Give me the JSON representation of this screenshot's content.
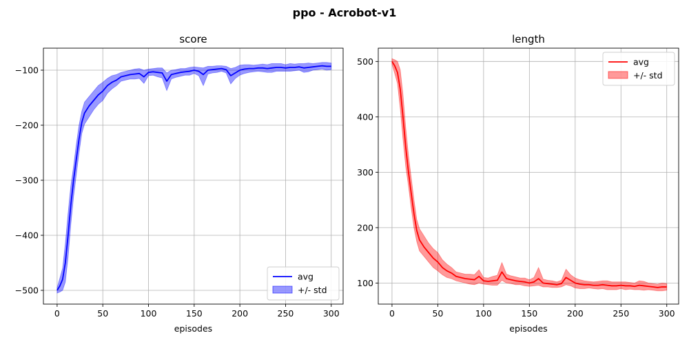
{
  "figure": {
    "suptitle": "ppo - Acrobot-v1"
  },
  "chart_data": [
    {
      "type": "line",
      "title": "score",
      "xlabel": "episodes",
      "ylabel": "",
      "xlim": [
        -15,
        313
      ],
      "ylim": [
        -525,
        -60
      ],
      "xticks": [
        0,
        50,
        100,
        150,
        200,
        250,
        300
      ],
      "yticks": [
        -500,
        -400,
        -300,
        -200,
        -100
      ],
      "ytick_labels": [
        "−500",
        "−400",
        "−300",
        "−200",
        "−100"
      ],
      "grid": true,
      "legend": {
        "placement": "bottom-right",
        "entries": [
          "avg",
          "+/- std"
        ]
      },
      "color": "#0000ff",
      "fill_color": "#0000ff",
      "series": [
        {
          "name": "avg",
          "x": [
            0,
            3,
            6,
            9,
            12,
            15,
            18,
            21,
            24,
            27,
            30,
            35,
            40,
            45,
            50,
            55,
            60,
            65,
            70,
            75,
            80,
            85,
            90,
            95,
            100,
            105,
            110,
            115,
            120,
            125,
            130,
            135,
            140,
            145,
            150,
            155,
            160,
            165,
            170,
            175,
            180,
            185,
            190,
            195,
            200,
            205,
            210,
            215,
            220,
            225,
            230,
            235,
            240,
            245,
            250,
            255,
            260,
            265,
            270,
            275,
            280,
            285,
            290,
            295,
            300
          ],
          "y": [
            -500,
            -492,
            -480,
            -450,
            -400,
            -345,
            -300,
            -262,
            -225,
            -195,
            -178,
            -165,
            -155,
            -145,
            -138,
            -128,
            -122,
            -118,
            -112,
            -110,
            -108,
            -107,
            -106,
            -112,
            -104,
            -103,
            -104,
            -105,
            -120,
            -108,
            -106,
            -104,
            -103,
            -102,
            -100,
            -102,
            -108,
            -100,
            -99,
            -98,
            -97,
            -99,
            -110,
            -105,
            -100,
            -98,
            -97,
            -97,
            -96,
            -96,
            -97,
            -96,
            -95,
            -95,
            -96,
            -95,
            -95,
            -94,
            -96,
            -95,
            -94,
            -93,
            -92,
            -93,
            -93
          ]
        },
        {
          "name": "+/- std",
          "x": [
            0,
            3,
            6,
            9,
            12,
            15,
            18,
            21,
            24,
            27,
            30,
            35,
            40,
            45,
            50,
            55,
            60,
            65,
            70,
            75,
            80,
            85,
            90,
            95,
            100,
            105,
            110,
            115,
            120,
            125,
            130,
            135,
            140,
            145,
            150,
            155,
            160,
            165,
            170,
            175,
            180,
            185,
            190,
            195,
            200,
            205,
            210,
            215,
            220,
            225,
            230,
            235,
            240,
            245,
            250,
            255,
            260,
            265,
            270,
            275,
            280,
            285,
            290,
            295,
            300
          ],
          "upper": [
            -495,
            -478,
            -460,
            -415,
            -360,
            -310,
            -275,
            -235,
            -200,
            -175,
            -158,
            -148,
            -138,
            -128,
            -122,
            -115,
            -110,
            -108,
            -104,
            -102,
            -100,
            -98,
            -97,
            -100,
            -98,
            -97,
            -96,
            -96,
            -105,
            -100,
            -99,
            -97,
            -97,
            -95,
            -94,
            -95,
            -96,
            -93,
            -93,
            -92,
            -92,
            -93,
            -97,
            -95,
            -91,
            -90,
            -90,
            -91,
            -90,
            -89,
            -90,
            -88,
            -88,
            -88,
            -90,
            -88,
            -89,
            -88,
            -88,
            -87,
            -88,
            -87,
            -86,
            -86,
            -87
          ],
          "lower": [
            -505,
            -503,
            -500,
            -485,
            -440,
            -380,
            -330,
            -290,
            -250,
            -215,
            -198,
            -185,
            -172,
            -162,
            -155,
            -142,
            -134,
            -128,
            -120,
            -118,
            -116,
            -116,
            -115,
            -124,
            -110,
            -109,
            -112,
            -114,
            -137,
            -116,
            -113,
            -111,
            -109,
            -109,
            -106,
            -110,
            -128,
            -107,
            -105,
            -104,
            -102,
            -105,
            -125,
            -115,
            -109,
            -106,
            -104,
            -103,
            -102,
            -103,
            -104,
            -104,
            -102,
            -102,
            -102,
            -102,
            -101,
            -100,
            -104,
            -103,
            -100,
            -99,
            -98,
            -100,
            -99
          ]
        }
      ]
    },
    {
      "type": "line",
      "title": "length",
      "xlabel": "episodes",
      "ylabel": "",
      "xlim": [
        -15,
        313
      ],
      "ylim": [
        62,
        524
      ],
      "xticks": [
        0,
        50,
        100,
        150,
        200,
        250,
        300
      ],
      "yticks": [
        100,
        200,
        300,
        400,
        500
      ],
      "ytick_labels": [
        "100",
        "200",
        "300",
        "400",
        "500"
      ],
      "grid": true,
      "legend": {
        "placement": "top-right",
        "entries": [
          "avg",
          "+/- std"
        ]
      },
      "color": "#ff0000",
      "fill_color": "#ff0000",
      "series": [
        {
          "name": "avg",
          "x": [
            0,
            3,
            6,
            9,
            12,
            15,
            18,
            21,
            24,
            27,
            30,
            35,
            40,
            45,
            50,
            55,
            60,
            65,
            70,
            75,
            80,
            85,
            90,
            95,
            100,
            105,
            110,
            115,
            120,
            125,
            130,
            135,
            140,
            145,
            150,
            155,
            160,
            165,
            170,
            175,
            180,
            185,
            190,
            195,
            200,
            205,
            210,
            215,
            220,
            225,
            230,
            235,
            240,
            245,
            250,
            255,
            260,
            265,
            270,
            275,
            280,
            285,
            290,
            295,
            300
          ],
          "y": [
            500,
            492,
            480,
            450,
            400,
            345,
            300,
            262,
            225,
            195,
            178,
            165,
            155,
            145,
            138,
            128,
            122,
            118,
            112,
            110,
            108,
            107,
            106,
            112,
            104,
            103,
            104,
            105,
            120,
            108,
            106,
            104,
            103,
            102,
            100,
            102,
            108,
            100,
            99,
            98,
            97,
            99,
            110,
            105,
            100,
            98,
            97,
            97,
            96,
            96,
            97,
            96,
            95,
            95,
            96,
            95,
            95,
            94,
            96,
            95,
            94,
            93,
            92,
            93,
            93
          ]
        },
        {
          "name": "+/- std",
          "x": [
            0,
            3,
            6,
            9,
            12,
            15,
            18,
            21,
            24,
            27,
            30,
            35,
            40,
            45,
            50,
            55,
            60,
            65,
            70,
            75,
            80,
            85,
            90,
            95,
            100,
            105,
            110,
            115,
            120,
            125,
            130,
            135,
            140,
            145,
            150,
            155,
            160,
            165,
            170,
            175,
            180,
            185,
            190,
            195,
            200,
            205,
            210,
            215,
            220,
            225,
            230,
            235,
            240,
            245,
            250,
            255,
            260,
            265,
            270,
            275,
            280,
            285,
            290,
            295,
            300
          ],
          "upper": [
            505,
            503,
            500,
            485,
            440,
            380,
            330,
            290,
            250,
            215,
            198,
            185,
            172,
            162,
            155,
            142,
            134,
            128,
            120,
            118,
            116,
            116,
            115,
            124,
            110,
            109,
            112,
            114,
            137,
            116,
            113,
            111,
            109,
            109,
            106,
            110,
            128,
            107,
            105,
            104,
            102,
            105,
            125,
            115,
            109,
            106,
            104,
            103,
            102,
            103,
            104,
            104,
            102,
            102,
            102,
            102,
            101,
            100,
            104,
            103,
            100,
            99,
            98,
            100,
            99
          ],
          "lower": [
            495,
            478,
            460,
            415,
            360,
            310,
            275,
            235,
            200,
            175,
            158,
            148,
            138,
            128,
            122,
            115,
            110,
            108,
            104,
            102,
            100,
            98,
            97,
            100,
            98,
            97,
            96,
            96,
            105,
            100,
            99,
            97,
            97,
            95,
            94,
            95,
            96,
            93,
            93,
            92,
            92,
            93,
            97,
            95,
            91,
            90,
            90,
            91,
            90,
            89,
            90,
            88,
            88,
            88,
            90,
            88,
            89,
            88,
            88,
            87,
            88,
            87,
            86,
            86,
            87
          ]
        }
      ]
    }
  ]
}
